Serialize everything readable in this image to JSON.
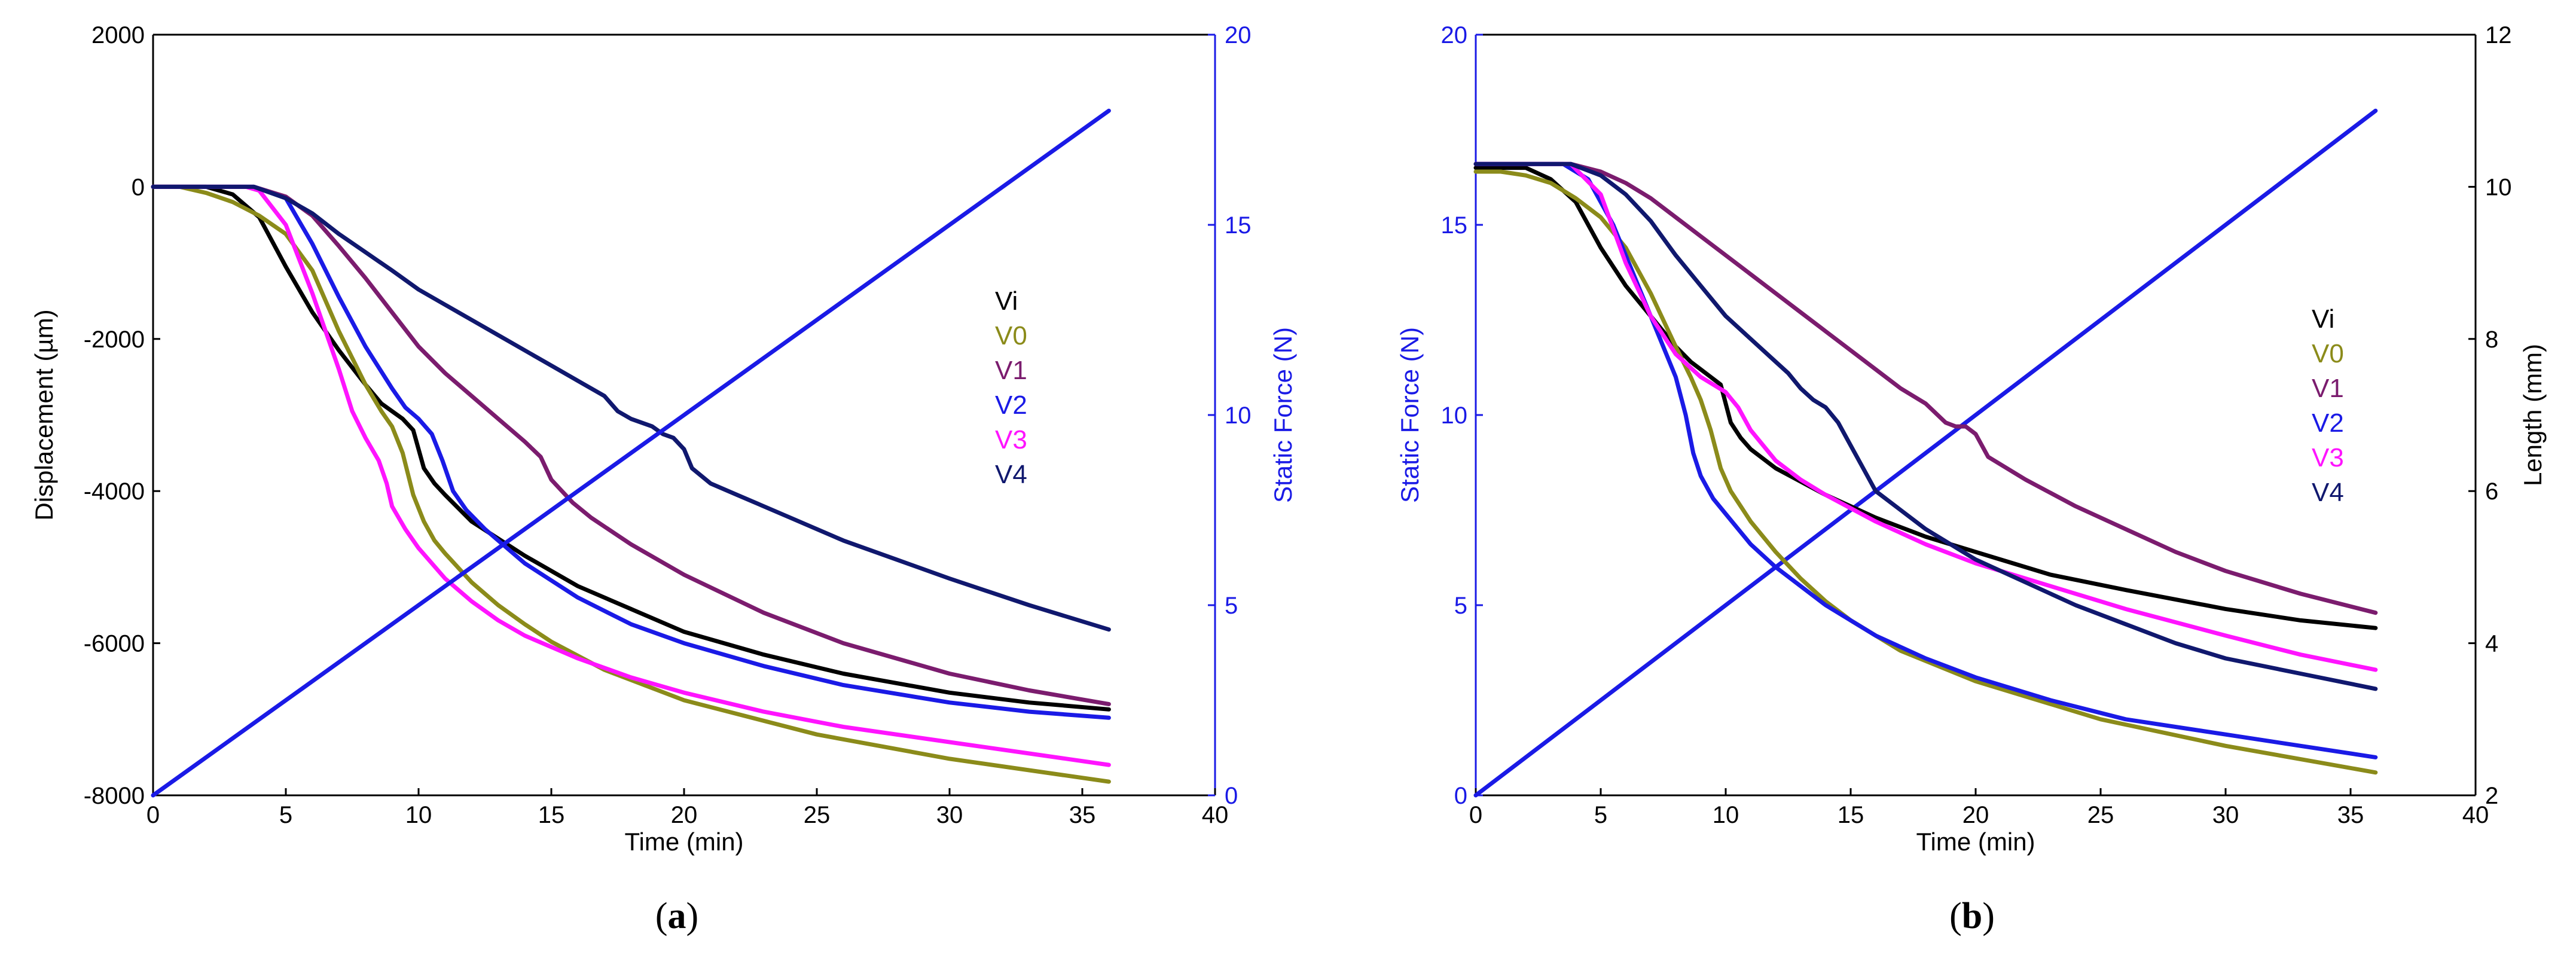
{
  "colors": {
    "Vi": "#000000",
    "V0": "#8B8B1A",
    "V1": "#7B1C6E",
    "V2": "#1A1AE6",
    "V3": "#FF14FF",
    "V4": "#10186E",
    "force": "#1A1AE6",
    "axis": "#000000"
  },
  "chart_data": [
    {
      "type": "line",
      "panel_label": "a",
      "xlabel": "Time (min)",
      "ylabel": "Displacement (µm)",
      "y2label": "Static Force (N)",
      "xlim": [
        0,
        40
      ],
      "ylim": [
        -8000,
        2000
      ],
      "y2lim": [
        0,
        20
      ],
      "xticks": [
        "0",
        "5",
        "10",
        "15",
        "20",
        "25",
        "30",
        "35",
        "40"
      ],
      "yticks": [
        "-8000",
        "-6000",
        "-4000",
        "-2000",
        "0",
        "2000"
      ],
      "y2ticks": [
        "0",
        "5",
        "10",
        "15",
        "20"
      ],
      "legend": [
        "Vi",
        "V0",
        "V1",
        "V2",
        "V3",
        "V4"
      ],
      "series": [
        {
          "name": "Vi",
          "axis": "left",
          "x": [
            0,
            2,
            3,
            4,
            5,
            6,
            7,
            8,
            8.6,
            9,
            9.4,
            9.8,
            10.2,
            10.6,
            11,
            12,
            14,
            16,
            18,
            20,
            23,
            26,
            30,
            33,
            36
          ],
          "y": [
            0,
            0,
            -100,
            -400,
            -1050,
            -1650,
            -2150,
            -2600,
            -2850,
            -2950,
            -3050,
            -3200,
            -3700,
            -3900,
            -4050,
            -4400,
            -4850,
            -5250,
            -5550,
            -5850,
            -6150,
            -6400,
            -6650,
            -6780,
            -6870
          ]
        },
        {
          "name": "V0",
          "axis": "left",
          "x": [
            0,
            1,
            2,
            3,
            4,
            5,
            6,
            7,
            8,
            8.6,
            9,
            9.4,
            9.8,
            10.2,
            10.6,
            11,
            12,
            13,
            14,
            15,
            17,
            20,
            25,
            30,
            36
          ],
          "y": [
            0,
            0,
            -80,
            -200,
            -380,
            -620,
            -1100,
            -1900,
            -2600,
            -2950,
            -3150,
            -3500,
            -4050,
            -4400,
            -4650,
            -4820,
            -5200,
            -5500,
            -5750,
            -5980,
            -6350,
            -6750,
            -7200,
            -7520,
            -7820
          ]
        },
        {
          "name": "V1",
          "axis": "left",
          "x": [
            0,
            3.8,
            5,
            6,
            7,
            8,
            9,
            10,
            11,
            12,
            13,
            14,
            14.6,
            15,
            15.4,
            15.8,
            16.5,
            18,
            20,
            23,
            26,
            30,
            33,
            36
          ],
          "y": [
            0,
            0,
            -130,
            -380,
            -780,
            -1200,
            -1650,
            -2100,
            -2450,
            -2750,
            -3050,
            -3350,
            -3550,
            -3850,
            -4000,
            -4150,
            -4350,
            -4700,
            -5100,
            -5600,
            -6000,
            -6400,
            -6620,
            -6800
          ]
        },
        {
          "name": "V2",
          "axis": "left",
          "x": [
            0,
            3.8,
            5,
            6,
            7,
            8,
            9,
            9.5,
            10,
            10.5,
            10.9,
            11.3,
            11.8,
            12.5,
            14,
            16,
            18,
            20,
            23,
            26,
            30,
            33,
            36
          ],
          "y": [
            0,
            0,
            -150,
            -750,
            -1450,
            -2100,
            -2650,
            -2900,
            -3050,
            -3250,
            -3600,
            -4000,
            -4250,
            -4500,
            -4950,
            -5400,
            -5750,
            -6000,
            -6300,
            -6550,
            -6780,
            -6900,
            -6980
          ]
        },
        {
          "name": "V3",
          "axis": "left",
          "x": [
            0,
            3.5,
            4,
            5,
            6,
            7,
            7.5,
            8,
            8.5,
            8.8,
            9,
            9.5,
            10,
            11,
            12,
            13,
            14,
            16,
            18,
            20,
            23,
            26,
            30,
            33,
            36
          ],
          "y": [
            0,
            0,
            -50,
            -500,
            -1400,
            -2400,
            -2950,
            -3300,
            -3600,
            -3900,
            -4200,
            -4500,
            -4750,
            -5150,
            -5450,
            -5700,
            -5900,
            -6200,
            -6450,
            -6650,
            -6900,
            -7100,
            -7300,
            -7450,
            -7600
          ]
        },
        {
          "name": "V4",
          "axis": "left",
          "x": [
            0,
            3.8,
            5,
            6,
            7,
            8,
            9,
            10,
            11,
            12,
            13,
            14,
            15,
            16,
            17,
            17.5,
            18,
            18.8,
            19.2,
            19.6,
            20,
            20.3,
            21,
            22,
            24,
            26,
            28,
            30,
            33,
            36
          ],
          "y": [
            0,
            0,
            -150,
            -350,
            -620,
            -860,
            -1100,
            -1350,
            -1550,
            -1750,
            -1950,
            -2150,
            -2350,
            -2550,
            -2750,
            -2950,
            -3050,
            -3150,
            -3250,
            -3300,
            -3450,
            -3700,
            -3900,
            -4050,
            -4350,
            -4650,
            -4900,
            -5150,
            -5500,
            -5820
          ]
        },
        {
          "name": "Static Force",
          "axis": "right",
          "x": [
            0,
            36
          ],
          "y": [
            0,
            18
          ]
        }
      ]
    },
    {
      "type": "line",
      "panel_label": "b",
      "xlabel": "Time (min)",
      "ylabel": "Static Force (N)",
      "y2label": "Length (mm)",
      "xlim": [
        0,
        40
      ],
      "ylim": [
        0,
        20
      ],
      "y2lim": [
        2,
        12
      ],
      "xticks": [
        "0",
        "5",
        "10",
        "15",
        "20",
        "25",
        "30",
        "35",
        "40"
      ],
      "yticks": [
        "0",
        "5",
        "10",
        "15",
        "20"
      ],
      "y2ticks": [
        "2",
        "4",
        "6",
        "8",
        "10",
        "12"
      ],
      "legend": [
        "Vi",
        "V0",
        "V1",
        "V2",
        "V3",
        "V4"
      ],
      "series": [
        {
          "name": "Static Force",
          "axis": "left",
          "x": [
            0,
            36
          ],
          "y": [
            0,
            18
          ]
        },
        {
          "name": "Vi",
          "axis": "right",
          "x": [
            0,
            2,
            3,
            4,
            5,
            6,
            7,
            8,
            8.6,
            9,
            9.4,
            9.8,
            10.2,
            10.6,
            11,
            12,
            14,
            16,
            18,
            20,
            23,
            26,
            30,
            33,
            36
          ],
          "y": [
            10.25,
            10.25,
            10.1,
            9.8,
            9.2,
            8.7,
            8.3,
            7.9,
            7.7,
            7.6,
            7.5,
            7.4,
            6.9,
            6.7,
            6.55,
            6.3,
            5.95,
            5.65,
            5.4,
            5.2,
            4.9,
            4.7,
            4.45,
            4.3,
            4.2
          ]
        },
        {
          "name": "V0",
          "axis": "right",
          "x": [
            0,
            1,
            2,
            3,
            4,
            5,
            6,
            7,
            8,
            8.6,
            9,
            9.4,
            9.8,
            10.2,
            10.6,
            11,
            12,
            13,
            14,
            15,
            17,
            20,
            25,
            30,
            36
          ],
          "y": [
            10.2,
            10.2,
            10.15,
            10.05,
            9.85,
            9.6,
            9.2,
            8.6,
            7.9,
            7.5,
            7.2,
            6.8,
            6.3,
            6.0,
            5.8,
            5.6,
            5.2,
            4.85,
            4.55,
            4.3,
            3.9,
            3.5,
            3.0,
            2.65,
            2.3
          ]
        },
        {
          "name": "V1",
          "axis": "right",
          "x": [
            0,
            3.8,
            5,
            6,
            7,
            8,
            9,
            10,
            11,
            12,
            13,
            14,
            15,
            16,
            17,
            18,
            18.8,
            19.2,
            19.6,
            20,
            20.5,
            22,
            24,
            26,
            28,
            30,
            33,
            36
          ],
          "y": [
            10.3,
            10.3,
            10.2,
            10.05,
            9.85,
            9.6,
            9.35,
            9.1,
            8.85,
            8.6,
            8.35,
            8.1,
            7.85,
            7.6,
            7.35,
            7.15,
            6.9,
            6.85,
            6.85,
            6.75,
            6.45,
            6.15,
            5.8,
            5.5,
            5.2,
            4.95,
            4.65,
            4.4
          ]
        },
        {
          "name": "V2",
          "axis": "right",
          "x": [
            0,
            3.5,
            4.5,
            5.5,
            6.5,
            7.5,
            8,
            8.4,
            8.7,
            9,
            9.5,
            10,
            11,
            12,
            13,
            14,
            16,
            18,
            20,
            23,
            26,
            30,
            33,
            36
          ],
          "y": [
            10.3,
            10.3,
            10.1,
            9.5,
            8.7,
            7.9,
            7.5,
            7.0,
            6.5,
            6.2,
            5.9,
            5.7,
            5.3,
            5.0,
            4.75,
            4.5,
            4.1,
            3.8,
            3.55,
            3.25,
            3.0,
            2.8,
            2.65,
            2.5
          ]
        },
        {
          "name": "V3",
          "axis": "right",
          "x": [
            0,
            3.8,
            5,
            6,
            7,
            8,
            9,
            10,
            10.5,
            11,
            11.5,
            12,
            13,
            14,
            16,
            18,
            20,
            23,
            26,
            30,
            33,
            36
          ],
          "y": [
            10.3,
            10.3,
            9.9,
            9.0,
            8.3,
            7.8,
            7.5,
            7.3,
            7.1,
            6.8,
            6.6,
            6.4,
            6.15,
            5.95,
            5.6,
            5.3,
            5.05,
            4.75,
            4.45,
            4.1,
            3.85,
            3.65
          ]
        },
        {
          "name": "V4",
          "axis": "right",
          "x": [
            0,
            3.8,
            5,
            6,
            7,
            8,
            9,
            10,
            11,
            12,
            12.5,
            13,
            13.5,
            14,
            14.5,
            15,
            15.5,
            16,
            17,
            18,
            20,
            22,
            24,
            26,
            28,
            30,
            33,
            36
          ],
          "y": [
            10.3,
            10.3,
            10.15,
            9.9,
            9.55,
            9.1,
            8.7,
            8.3,
            8.0,
            7.7,
            7.55,
            7.35,
            7.2,
            7.1,
            6.9,
            6.6,
            6.3,
            6.0,
            5.75,
            5.5,
            5.1,
            4.8,
            4.5,
            4.25,
            4.0,
            3.8,
            3.6,
            3.4
          ]
        }
      ]
    }
  ],
  "captions": {
    "a": {
      "open": "(",
      "letter": "a",
      "close": ")"
    },
    "b": {
      "open": "(",
      "letter": "b",
      "close": ")"
    }
  }
}
